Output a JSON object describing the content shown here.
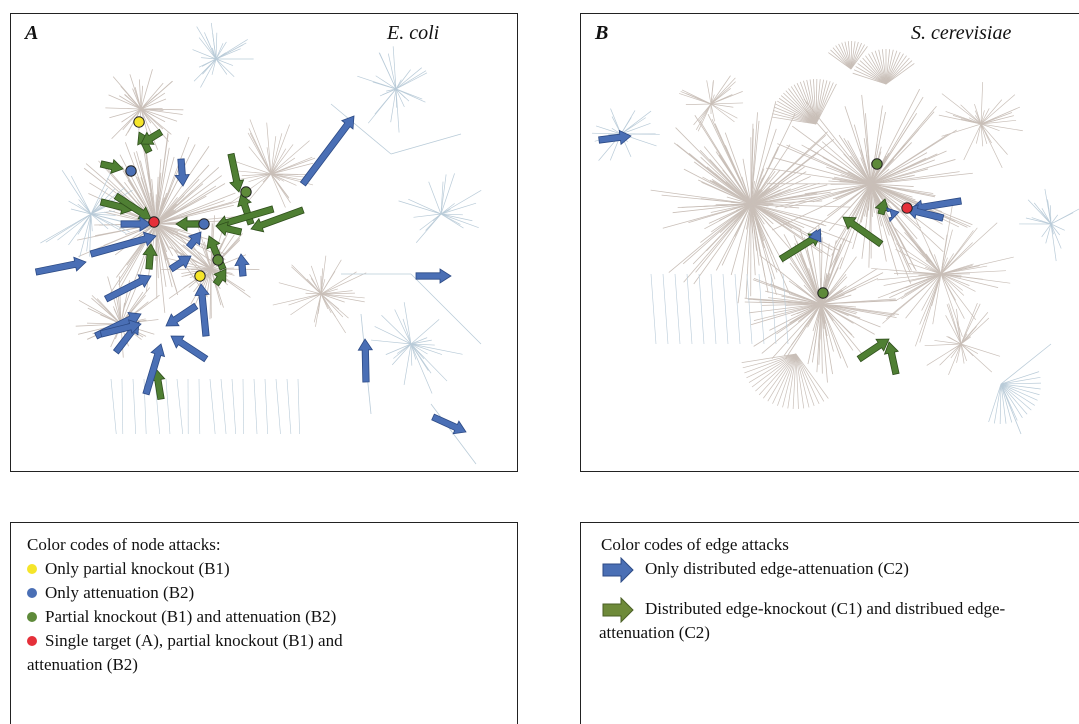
{
  "panel_a": {
    "label": "A",
    "organism": "E. coli"
  },
  "panel_b": {
    "label": "B",
    "organism": "S. cerevisiae"
  },
  "node_legend": {
    "title": "Color codes of node attacks:",
    "items": [
      {
        "text": "Only partial knockout (B1)",
        "color": "#f5e52a"
      },
      {
        "text": "Only attenuation (B2)",
        "color": "#4a6fb5"
      },
      {
        "text": "Partial knockout (B1) and attenuation (B2)",
        "color": "#5e8a3a"
      },
      {
        "text": "Single target (A), partial knockout  (B1) and",
        "text2": "attenuation (B2)",
        "color": "#e5303a"
      }
    ]
  },
  "edge_legend": {
    "title": "Color codes of edge attacks",
    "items": [
      {
        "text": "Only distributed edge-attenuation (C2)",
        "color": "#4a6fb5"
      },
      {
        "text": "Distributed edge-knockout (C1) and distribued edge-",
        "text2": "attenuation (C2)",
        "color": "#5e8a3a"
      }
    ]
  },
  "colors": {
    "network_edge": "#c9bfb8",
    "network_light": "#b9cbd8",
    "attenuation_arrow": "#4a6fb5",
    "knockout_arrow": "#4f7f33"
  }
}
